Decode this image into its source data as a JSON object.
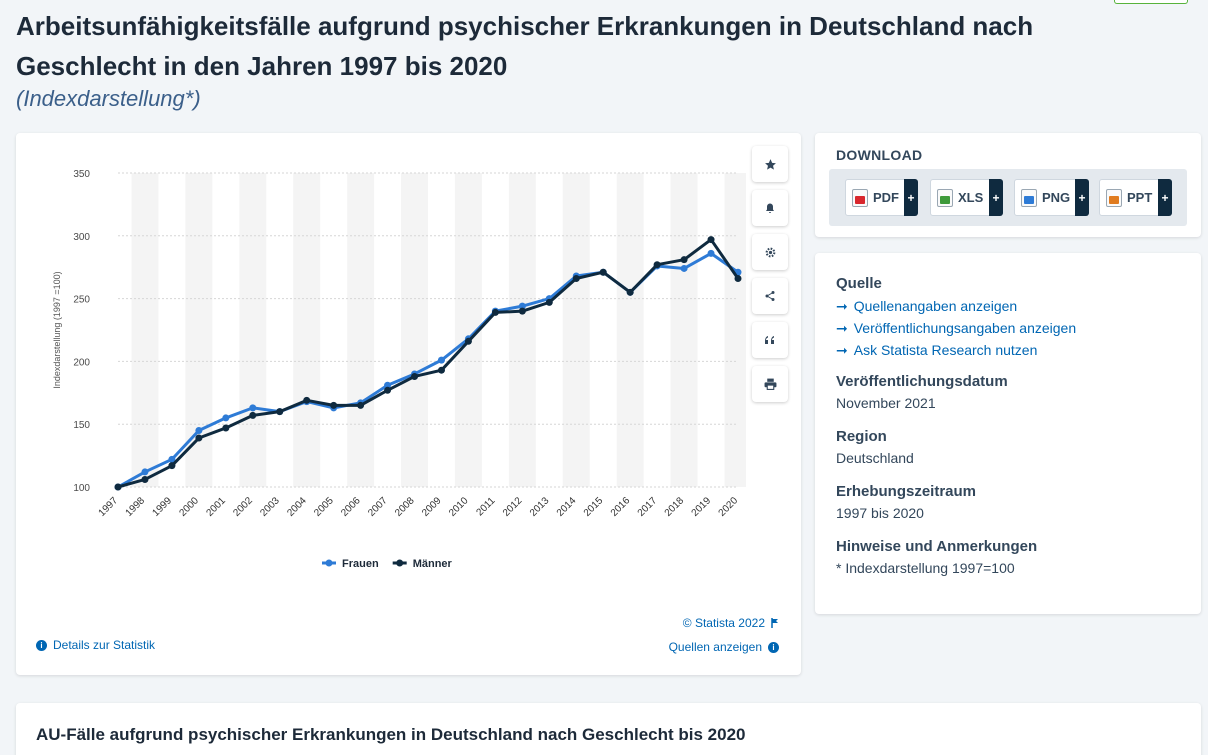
{
  "page": {
    "title": "Arbeitsunfähigkeitsfälle aufgrund psychischer Erkrankungen in Deutschland nach Geschlecht in den Jahren 1997 bis 2020",
    "subtitle": "(Indexdarstellung*)"
  },
  "chart_data": {
    "type": "line",
    "title": "",
    "xlabel": "",
    "ylabel": "Indexdarstellung (1997 =100)",
    "x": [
      "1997",
      "1998",
      "1999",
      "2000",
      "2001",
      "2002",
      "2003",
      "2004",
      "2005",
      "2006",
      "2007",
      "2008",
      "2009",
      "2010",
      "2011",
      "2012",
      "2013",
      "2014",
      "2015",
      "2016",
      "2017",
      "2018",
      "2019",
      "2020"
    ],
    "series": [
      {
        "name": "Frauen",
        "color": "#2e7bd6",
        "values": [
          100,
          112,
          122,
          145,
          155,
          163,
          160,
          168,
          163,
          167,
          181,
          190,
          201,
          218,
          240,
          244,
          250,
          268,
          271,
          255,
          276,
          274,
          286,
          271
        ]
      },
      {
        "name": "Männer",
        "color": "#0f2a3f",
        "values": [
          100,
          106,
          117,
          139,
          147,
          157,
          160,
          169,
          165,
          165,
          177,
          188,
          193,
          216,
          239,
          240,
          247,
          266,
          271,
          255,
          277,
          281,
          297,
          266
        ]
      }
    ],
    "yticks": [
      100,
      150,
      200,
      250,
      300,
      350
    ],
    "ylim": [
      100,
      350
    ],
    "grid": true,
    "legend_position": "bottom"
  },
  "chart_footer": {
    "copyright": "© Statista 2022",
    "details_link": "Details zur Statistik",
    "sources_link": "Quellen anzeigen"
  },
  "toolbar": {
    "icons": [
      "star-icon",
      "bell-icon",
      "gear-icon",
      "share-icon",
      "quote-icon",
      "print-icon"
    ]
  },
  "download": {
    "title": "DOWNLOAD",
    "buttons": [
      {
        "label": "PDF",
        "color": "#d9272e"
      },
      {
        "label": "XLS",
        "color": "#3e9a3a"
      },
      {
        "label": "PNG",
        "color": "#2e7bd6"
      },
      {
        "label": "PPT",
        "color": "#e07b1f"
      }
    ],
    "plus": "+"
  },
  "info": {
    "source_heading": "Quelle",
    "source_links": [
      "Quellenangaben anzeigen",
      "Veröffentlichungsangaben anzeigen",
      "Ask Statista Research nutzen"
    ],
    "pub_date_heading": "Veröffentlichungsdatum",
    "pub_date": "November 2021",
    "region_heading": "Region",
    "region": "Deutschland",
    "period_heading": "Erhebungszeitraum",
    "period": "1997 bis 2020",
    "notes_heading": "Hinweise und Anmerkungen",
    "notes": "* Indexdarstellung 1997=100"
  },
  "bottom": {
    "title": "AU-Fälle aufgrund psychischer Erkrankungen in Deutschland nach Geschlecht bis 2020"
  }
}
